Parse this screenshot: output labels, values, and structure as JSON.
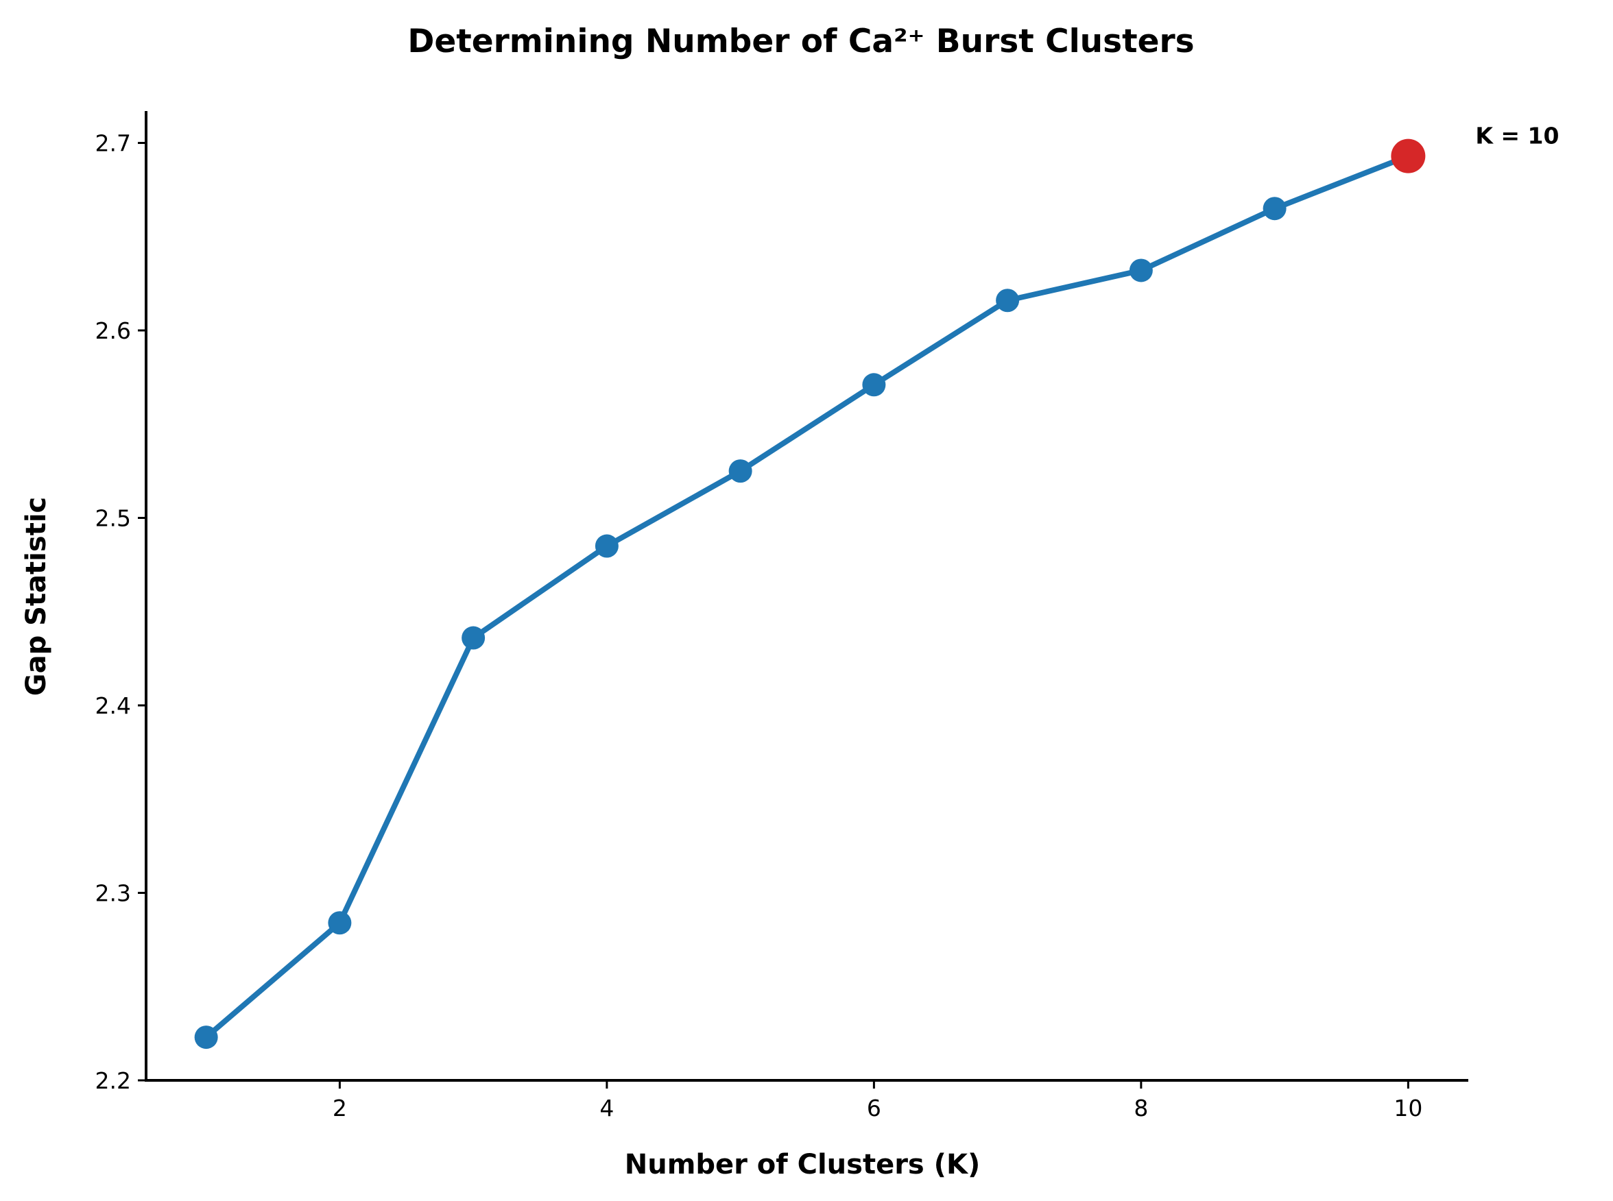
{
  "chart_data": {
    "type": "line",
    "title": "Determining Number of Ca²⁺ Burst Clusters",
    "xlabel": "Number of Clusters (K)",
    "ylabel": "Gap Statistic",
    "xlim": [
      0.55,
      10.45
    ],
    "ylim": [
      2.2,
      2.717
    ],
    "xticks": [
      2,
      4,
      6,
      8,
      10
    ],
    "xtick_labels": [
      "2",
      "4",
      "6",
      "8",
      "10"
    ],
    "yticks": [
      2.2,
      2.3,
      2.4,
      2.5,
      2.6,
      2.7
    ],
    "ytick_labels": [
      "2.2",
      "2.3",
      "2.4",
      "2.5",
      "2.6",
      "2.7"
    ],
    "grid": false,
    "series": [
      {
        "x": [
          1,
          2,
          3,
          4,
          5,
          6,
          7,
          8,
          9,
          10
        ],
        "values": [
          2.223,
          2.284,
          2.436,
          2.485,
          2.525,
          2.571,
          2.616,
          2.632,
          2.665,
          2.693
        ],
        "color": "#1f77b4"
      }
    ],
    "highlight": {
      "x": 10,
      "y": 2.693,
      "color": "#d62728"
    },
    "annotations": [
      {
        "text": "K = 10",
        "x": 10,
        "y": 2.693
      }
    ]
  }
}
